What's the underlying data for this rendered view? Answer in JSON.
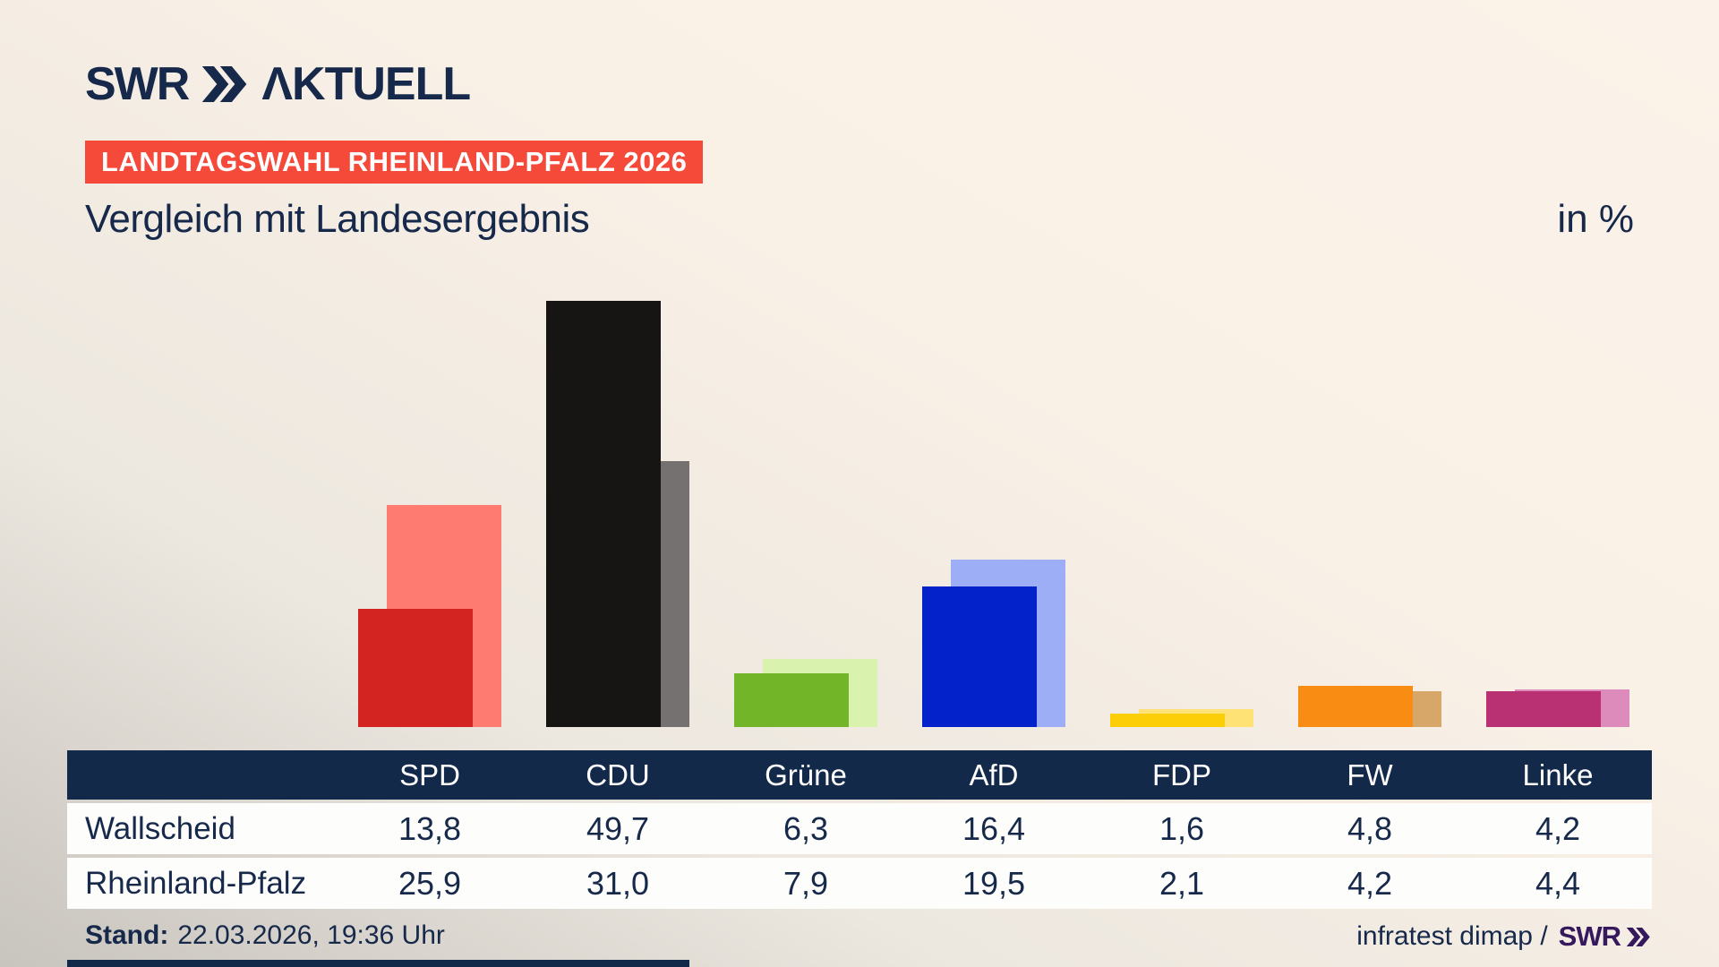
{
  "brand": {
    "swr": "SWR",
    "aktuell": "ΛKTUELL"
  },
  "badge": {
    "label": "LANDTAGSWAHL RHEINLAND-PFALZ 2026",
    "bg": "#f5493a",
    "text_color": "#ffffff"
  },
  "heading": {
    "subtitle": "Vergleich mit Landesergebnis",
    "unit": "in %"
  },
  "chart_data": {
    "type": "bar",
    "title": "Vergleich mit Landesergebnis",
    "ylabel": "in %",
    "ylim": [
      0,
      56
    ],
    "grid": false,
    "legend_position": "table-below",
    "categories": [
      "SPD",
      "CDU",
      "Grüne",
      "AfD",
      "FDP",
      "FW",
      "Linke"
    ],
    "series": [
      {
        "name": "Wallscheid",
        "values": [
          13.8,
          49.7,
          6.3,
          16.4,
          1.6,
          4.8,
          4.2
        ]
      },
      {
        "name": "Rheinland-Pfalz",
        "values": [
          25.9,
          31.0,
          7.9,
          19.5,
          2.1,
          4.2,
          4.4
        ]
      }
    ],
    "colors": {
      "front": [
        "#d32422",
        "#161513",
        "#73b528",
        "#0322c9",
        "#fcce08",
        "#f98d13",
        "#ba3173"
      ],
      "back": [
        "#fe7b72",
        "#747170",
        "#d9f2ae",
        "#9dadf6",
        "#fee275",
        "#d7a769",
        "#dd8bbb"
      ]
    }
  },
  "table": {
    "header": [
      "",
      "SPD",
      "CDU",
      "Grüne",
      "AfD",
      "FDP",
      "FW",
      "Linke"
    ],
    "header_bg": "#12294a",
    "rows": [
      {
        "label": "Wallscheid",
        "values": [
          "13,8",
          "49,7",
          "6,3",
          "16,4",
          "1,6",
          "4,8",
          "4,2"
        ]
      },
      {
        "label": "Rheinland-Pfalz",
        "values": [
          "25,9",
          "31,0",
          "7,9",
          "19,5",
          "2,1",
          "4,2",
          "4,4"
        ]
      }
    ]
  },
  "footer": {
    "stand_label": "Stand:",
    "stand_value": "22.03.2026, 19:36 Uhr",
    "source_text": "infratest dimap /",
    "source_brand": "SWR"
  },
  "colors": {
    "navy": "#16294a",
    "badge_red": "#f5493a",
    "table_header_navy": "#12294a",
    "footer_brand_purple": "#36195c",
    "background_light": "#fbf3e9",
    "background_dark": "#c8c4be"
  }
}
